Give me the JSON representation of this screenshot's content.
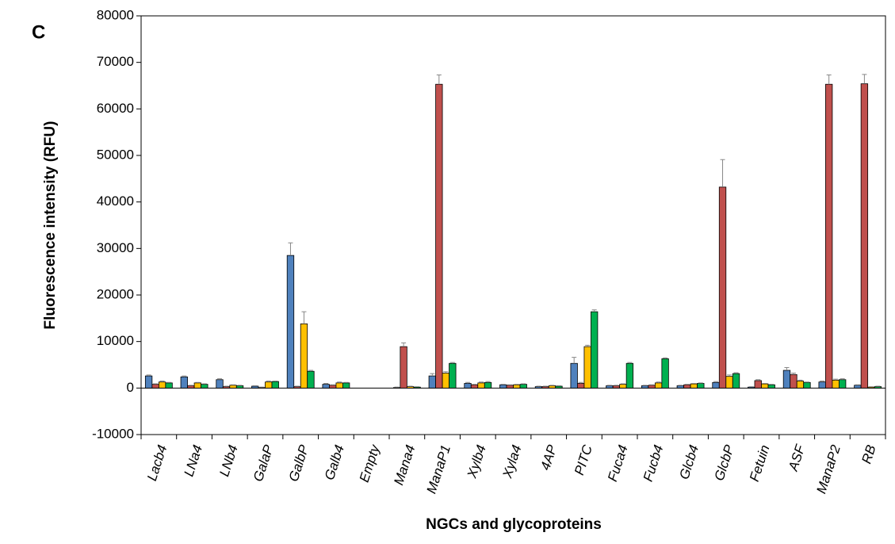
{
  "chart_data": {
    "type": "bar",
    "panel_label": "C",
    "y_label": "Fluorescence intensity (RFU)",
    "x_label": "NGCs and glycoproteins",
    "categories": [
      "Lacb4",
      "LNa4",
      "LNb4",
      "GalaP",
      "GalbP",
      "Galb4",
      "Empty",
      "Mana4",
      "ManaP1",
      "Xylb4",
      "Xyla4",
      "4AP",
      "PITC",
      "Fuca4",
      "Fucb4",
      "Glcb4",
      "GlcbP",
      "Fetuin",
      "ASF",
      "ManaP2",
      "RB"
    ],
    "series": [
      {
        "color": "#4f81bd",
        "values": [
          2600,
          2400,
          1800,
          400,
          28500,
          800,
          0,
          100,
          2600,
          1000,
          700,
          300,
          5300,
          500,
          500,
          500,
          1200,
          200,
          3800,
          1300,
          600
        ],
        "errors": [
          200,
          200,
          200,
          100,
          2700,
          200,
          0,
          100,
          500,
          200,
          100,
          100,
          1300,
          100,
          100,
          100,
          200,
          100,
          600,
          200,
          100
        ]
      },
      {
        "color": "#c0504d",
        "values": [
          800,
          500,
          300,
          100,
          300,
          600,
          0,
          8900,
          65300,
          700,
          600,
          300,
          1000,
          500,
          600,
          700,
          43200,
          1600,
          2900,
          65300,
          65400
        ],
        "errors": [
          100,
          100,
          100,
          100,
          100,
          100,
          0,
          800,
          2000,
          100,
          100,
          100,
          200,
          100,
          100,
          100,
          5900,
          200,
          300,
          2000,
          2000
        ]
      },
      {
        "color": "#ffc000",
        "values": [
          1300,
          1100,
          600,
          1300,
          13800,
          1100,
          0,
          300,
          3200,
          1100,
          700,
          500,
          8900,
          800,
          1100,
          900,
          2500,
          900,
          1500,
          1700,
          200
        ],
        "errors": [
          200,
          100,
          100,
          200,
          2600,
          200,
          0,
          100,
          300,
          200,
          100,
          100,
          300,
          100,
          200,
          100,
          300,
          100,
          200,
          200,
          100
        ]
      },
      {
        "color": "#00b050",
        "values": [
          1100,
          800,
          500,
          1400,
          3600,
          1100,
          0,
          200,
          5300,
          1200,
          800,
          400,
          16400,
          5300,
          6300,
          1000,
          3100,
          700,
          1200,
          1800,
          300
        ],
        "errors": [
          100,
          100,
          100,
          100,
          200,
          100,
          0,
          100,
          200,
          200,
          100,
          100,
          400,
          200,
          200,
          100,
          200,
          100,
          100,
          200,
          100
        ]
      }
    ],
    "ylim": [
      -10000,
      80000
    ],
    "yticks": [
      -10000,
      0,
      10000,
      20000,
      30000,
      40000,
      50000,
      60000,
      70000,
      80000
    ]
  }
}
